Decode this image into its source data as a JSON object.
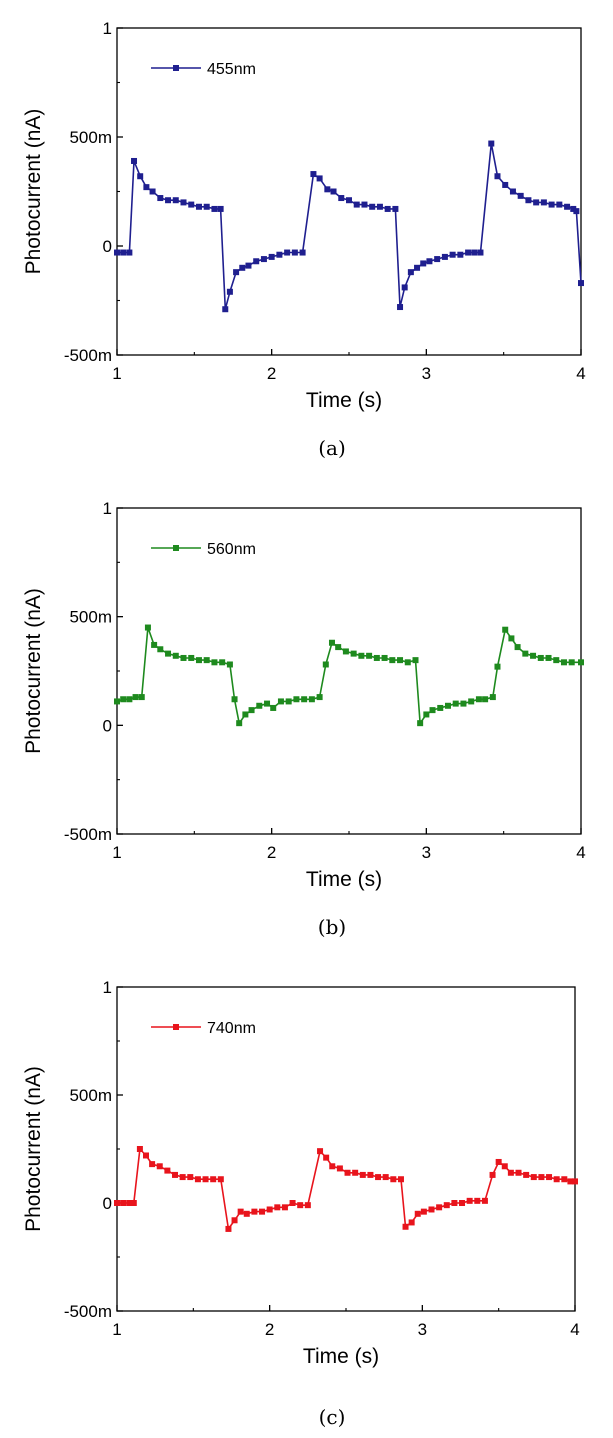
{
  "chart_data": [
    {
      "type": "line",
      "caption": "(a)",
      "xlabel": "Time (s)",
      "ylabel": "Photocurrent (nA)",
      "xlim": [
        1,
        4
      ],
      "ylim": [
        -0.5,
        1
      ],
      "xticks": [
        1,
        2,
        3,
        4
      ],
      "xtick_labels": [
        "1",
        "2",
        "3",
        "4"
      ],
      "yticks": [
        -0.5,
        0,
        0.5,
        1
      ],
      "ytick_labels": [
        "-500m",
        "0",
        "500m",
        "1"
      ],
      "legend_position": "top-left",
      "series": [
        {
          "name": "455nm",
          "color": "#1f1f8f",
          "marker": "square",
          "points": [
            [
              1.0,
              -0.03
            ],
            [
              1.04,
              -0.03
            ],
            [
              1.08,
              -0.03
            ],
            [
              1.11,
              0.39
            ],
            [
              1.15,
              0.32
            ],
            [
              1.19,
              0.27
            ],
            [
              1.23,
              0.25
            ],
            [
              1.28,
              0.22
            ],
            [
              1.33,
              0.21
            ],
            [
              1.38,
              0.21
            ],
            [
              1.43,
              0.2
            ],
            [
              1.48,
              0.19
            ],
            [
              1.53,
              0.18
            ],
            [
              1.58,
              0.18
            ],
            [
              1.63,
              0.17
            ],
            [
              1.67,
              0.17
            ],
            [
              1.7,
              -0.29
            ],
            [
              1.73,
              -0.21
            ],
            [
              1.77,
              -0.12
            ],
            [
              1.81,
              -0.1
            ],
            [
              1.85,
              -0.09
            ],
            [
              1.9,
              -0.07
            ],
            [
              1.95,
              -0.06
            ],
            [
              2.0,
              -0.05
            ],
            [
              2.05,
              -0.04
            ],
            [
              2.1,
              -0.03
            ],
            [
              2.15,
              -0.03
            ],
            [
              2.2,
              -0.03
            ],
            [
              2.27,
              0.33
            ],
            [
              2.31,
              0.31
            ],
            [
              2.36,
              0.26
            ],
            [
              2.4,
              0.25
            ],
            [
              2.45,
              0.22
            ],
            [
              2.5,
              0.21
            ],
            [
              2.55,
              0.19
            ],
            [
              2.6,
              0.19
            ],
            [
              2.65,
              0.18
            ],
            [
              2.7,
              0.18
            ],
            [
              2.75,
              0.17
            ],
            [
              2.8,
              0.17
            ],
            [
              2.83,
              -0.28
            ],
            [
              2.86,
              -0.19
            ],
            [
              2.9,
              -0.12
            ],
            [
              2.94,
              -0.1
            ],
            [
              2.98,
              -0.08
            ],
            [
              3.02,
              -0.07
            ],
            [
              3.07,
              -0.06
            ],
            [
              3.12,
              -0.05
            ],
            [
              3.17,
              -0.04
            ],
            [
              3.22,
              -0.04
            ],
            [
              3.27,
              -0.03
            ],
            [
              3.31,
              -0.03
            ],
            [
              3.35,
              -0.03
            ],
            [
              3.42,
              0.47
            ],
            [
              3.46,
              0.32
            ],
            [
              3.51,
              0.28
            ],
            [
              3.56,
              0.25
            ],
            [
              3.61,
              0.23
            ],
            [
              3.66,
              0.21
            ],
            [
              3.71,
              0.2
            ],
            [
              3.76,
              0.2
            ],
            [
              3.81,
              0.19
            ],
            [
              3.86,
              0.19
            ],
            [
              3.91,
              0.18
            ],
            [
              3.95,
              0.17
            ],
            [
              3.97,
              0.16
            ],
            [
              4.0,
              -0.17
            ]
          ]
        }
      ]
    },
    {
      "type": "line",
      "caption": "(b)",
      "xlabel": "Time (s)",
      "ylabel": "Photocurrent (nA)",
      "xlim": [
        1,
        4
      ],
      "ylim": [
        -0.5,
        1
      ],
      "xticks": [
        1,
        2,
        3,
        4
      ],
      "xtick_labels": [
        "1",
        "2",
        "3",
        "4"
      ],
      "yticks": [
        -0.5,
        0,
        0.5,
        1
      ],
      "ytick_labels": [
        "-500m",
        "0",
        "500m",
        "1"
      ],
      "legend_position": "top-left",
      "series": [
        {
          "name": "560nm",
          "color": "#1e8a1e",
          "marker": "square",
          "points": [
            [
              1.0,
              0.11
            ],
            [
              1.04,
              0.12
            ],
            [
              1.08,
              0.12
            ],
            [
              1.12,
              0.13
            ],
            [
              1.16,
              0.13
            ],
            [
              1.2,
              0.45
            ],
            [
              1.24,
              0.37
            ],
            [
              1.28,
              0.35
            ],
            [
              1.33,
              0.33
            ],
            [
              1.38,
              0.32
            ],
            [
              1.43,
              0.31
            ],
            [
              1.48,
              0.31
            ],
            [
              1.53,
              0.3
            ],
            [
              1.58,
              0.3
            ],
            [
              1.63,
              0.29
            ],
            [
              1.68,
              0.29
            ],
            [
              1.73,
              0.28
            ],
            [
              1.76,
              0.12
            ],
            [
              1.79,
              0.01
            ],
            [
              1.83,
              0.05
            ],
            [
              1.87,
              0.07
            ],
            [
              1.92,
              0.09
            ],
            [
              1.97,
              0.1
            ],
            [
              2.01,
              0.08
            ],
            [
              2.06,
              0.11
            ],
            [
              2.11,
              0.11
            ],
            [
              2.16,
              0.12
            ],
            [
              2.21,
              0.12
            ],
            [
              2.26,
              0.12
            ],
            [
              2.31,
              0.13
            ],
            [
              2.35,
              0.28
            ],
            [
              2.39,
              0.38
            ],
            [
              2.43,
              0.36
            ],
            [
              2.48,
              0.34
            ],
            [
              2.53,
              0.33
            ],
            [
              2.58,
              0.32
            ],
            [
              2.63,
              0.32
            ],
            [
              2.68,
              0.31
            ],
            [
              2.73,
              0.31
            ],
            [
              2.78,
              0.3
            ],
            [
              2.83,
              0.3
            ],
            [
              2.88,
              0.29
            ],
            [
              2.93,
              0.3
            ],
            [
              2.96,
              0.01
            ],
            [
              3.0,
              0.05
            ],
            [
              3.04,
              0.07
            ],
            [
              3.09,
              0.08
            ],
            [
              3.14,
              0.09
            ],
            [
              3.19,
              0.1
            ],
            [
              3.24,
              0.1
            ],
            [
              3.29,
              0.11
            ],
            [
              3.34,
              0.12
            ],
            [
              3.38,
              0.12
            ],
            [
              3.43,
              0.13
            ],
            [
              3.46,
              0.27
            ],
            [
              3.51,
              0.44
            ],
            [
              3.55,
              0.4
            ],
            [
              3.59,
              0.36
            ],
            [
              3.64,
              0.33
            ],
            [
              3.69,
              0.32
            ],
            [
              3.74,
              0.31
            ],
            [
              3.79,
              0.31
            ],
            [
              3.84,
              0.3
            ],
            [
              3.89,
              0.29
            ],
            [
              3.94,
              0.29
            ],
            [
              4.0,
              0.29
            ]
          ]
        }
      ]
    },
    {
      "type": "line",
      "caption": "(c)",
      "xlabel": "Time (s)",
      "ylabel": "Photocurrent (nA)",
      "xlim": [
        1,
        4
      ],
      "ylim": [
        -0.5,
        1
      ],
      "xticks": [
        1,
        2,
        3,
        4
      ],
      "xtick_labels": [
        "1",
        "2",
        "3",
        "4"
      ],
      "yticks": [
        -0.5,
        0,
        0.5,
        1
      ],
      "ytick_labels": [
        "-500m",
        "0",
        "500m",
        "1"
      ],
      "legend_position": "top-left",
      "series": [
        {
          "name": "740nm",
          "color": "#e8141c",
          "marker": "square",
          "points": [
            [
              1.0,
              0.0
            ],
            [
              1.04,
              0.0
            ],
            [
              1.08,
              0.0
            ],
            [
              1.11,
              0.0
            ],
            [
              1.15,
              0.25
            ],
            [
              1.19,
              0.22
            ],
            [
              1.23,
              0.18
            ],
            [
              1.28,
              0.17
            ],
            [
              1.33,
              0.15
            ],
            [
              1.38,
              0.13
            ],
            [
              1.43,
              0.12
            ],
            [
              1.48,
              0.12
            ],
            [
              1.53,
              0.11
            ],
            [
              1.58,
              0.11
            ],
            [
              1.63,
              0.11
            ],
            [
              1.68,
              0.11
            ],
            [
              1.73,
              -0.12
            ],
            [
              1.77,
              -0.08
            ],
            [
              1.81,
              -0.04
            ],
            [
              1.85,
              -0.05
            ],
            [
              1.9,
              -0.04
            ],
            [
              1.95,
              -0.04
            ],
            [
              2.0,
              -0.03
            ],
            [
              2.05,
              -0.02
            ],
            [
              2.1,
              -0.02
            ],
            [
              2.15,
              0.0
            ],
            [
              2.2,
              -0.01
            ],
            [
              2.25,
              -0.01
            ],
            [
              2.33,
              0.24
            ],
            [
              2.37,
              0.21
            ],
            [
              2.41,
              0.17
            ],
            [
              2.46,
              0.16
            ],
            [
              2.51,
              0.14
            ],
            [
              2.56,
              0.14
            ],
            [
              2.61,
              0.13
            ],
            [
              2.66,
              0.13
            ],
            [
              2.71,
              0.12
            ],
            [
              2.76,
              0.12
            ],
            [
              2.81,
              0.11
            ],
            [
              2.86,
              0.11
            ],
            [
              2.89,
              -0.11
            ],
            [
              2.93,
              -0.09
            ],
            [
              2.97,
              -0.05
            ],
            [
              3.01,
              -0.04
            ],
            [
              3.06,
              -0.03
            ],
            [
              3.11,
              -0.02
            ],
            [
              3.16,
              -0.01
            ],
            [
              3.21,
              0.0
            ],
            [
              3.26,
              0.0
            ],
            [
              3.31,
              0.01
            ],
            [
              3.36,
              0.01
            ],
            [
              3.41,
              0.01
            ],
            [
              3.46,
              0.13
            ],
            [
              3.5,
              0.19
            ],
            [
              3.54,
              0.17
            ],
            [
              3.58,
              0.14
            ],
            [
              3.63,
              0.14
            ],
            [
              3.68,
              0.13
            ],
            [
              3.73,
              0.12
            ],
            [
              3.78,
              0.12
            ],
            [
              3.83,
              0.12
            ],
            [
              3.88,
              0.11
            ],
            [
              3.93,
              0.11
            ],
            [
              3.97,
              0.1
            ],
            [
              4.0,
              0.1
            ]
          ]
        }
      ]
    }
  ]
}
